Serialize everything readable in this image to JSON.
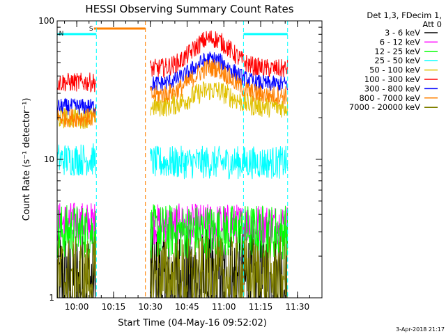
{
  "chart_data": {
    "type": "line",
    "title": "HESSI Observing Summary Count Rates",
    "xlabel": "Start Time (04-May-16 09:52:02)",
    "ylabel": "Count Rate (s⁻¹ detector⁻¹)",
    "yscale": "log",
    "ylim": [
      1,
      100
    ],
    "xlim_minutes": [
      -8,
      100
    ],
    "x_ticks": [
      "10:00",
      "10:15",
      "10:30",
      "10:45",
      "11:00",
      "11:15",
      "11:30"
    ],
    "y_ticks": [
      "1",
      "10",
      "100"
    ],
    "legend_header": [
      "Det 1,3, FDecim 1,",
      "Att 0"
    ],
    "legend_placement": "right",
    "timestamp": "3-Apr-2018 21:17",
    "flags": [
      {
        "label": "S",
        "color": "#ff8000",
        "start": "10:07",
        "end": "10:28"
      },
      {
        "label": "N",
        "color": "#00ffff",
        "start": "09:52",
        "end": "10:08"
      },
      {
        "label": "",
        "color": "#00ffff",
        "start": "11:08",
        "end": "11:26"
      }
    ],
    "markers": [
      {
        "time": "10:08",
        "color": "#00ffff"
      },
      {
        "time": "10:28",
        "color": "#ff8000"
      },
      {
        "time": "11:08",
        "color": "#00ffff"
      },
      {
        "time": "11:26",
        "color": "#00ffff"
      }
    ],
    "gaps": [
      [
        "10:08",
        "10:30"
      ]
    ],
    "series": [
      {
        "name": "3 - 6 keV",
        "color": "#000000",
        "pre": 1.3,
        "post": 1.3,
        "noise": 0.4,
        "bump": 0
      },
      {
        "name": "6 - 12 keV",
        "color": "#ff00ff",
        "pre": 3.5,
        "post": 3.4,
        "noise": 0.15,
        "bump": 0
      },
      {
        "name": "12 - 25 keV",
        "color": "#00ff00",
        "pre": 3.0,
        "post": 3.0,
        "noise": 0.2,
        "bump": 0
      },
      {
        "name": "25 - 50 keV",
        "color": "#00ffff",
        "pre": 10.0,
        "post": 9.5,
        "noise": 0.12,
        "bump": 0
      },
      {
        "name": "50 - 100 keV",
        "color": "#e0c000",
        "pre": 20.0,
        "post": 24.0,
        "noise": 0.08,
        "bump": 0.12
      },
      {
        "name": "100 - 300 keV",
        "color": "#ff0000",
        "pre": 36.0,
        "post": 45.0,
        "noise": 0.07,
        "bump": 0.22
      },
      {
        "name": "300 - 800 keV",
        "color": "#0000ff",
        "pre": 24.0,
        "post": 35.0,
        "noise": 0.06,
        "bump": 0.18
      },
      {
        "name": "800 - 7000 keV",
        "color": "#ff8000",
        "pre": 20.0,
        "post": 29.0,
        "noise": 0.07,
        "bump": 0.2
      },
      {
        "name": "7000 - 20000 keV",
        "color": "#808000",
        "pre": 1.4,
        "post": 1.4,
        "noise": 0.3,
        "bump": 0
      }
    ]
  }
}
